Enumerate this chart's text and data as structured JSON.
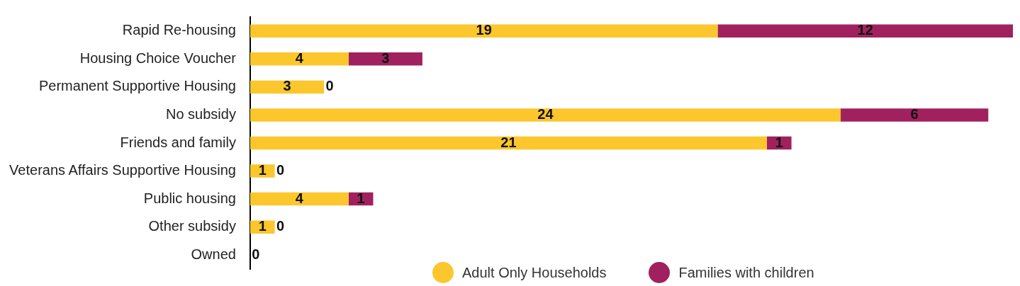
{
  "chart_data": {
    "type": "bar",
    "orientation": "horizontal",
    "stacked": true,
    "grid": false,
    "legend": "bottom",
    "xlim": [
      0,
      31
    ],
    "tick_labels": "y",
    "categories": [
      "Rapid Re-housing",
      "Housing Choice Voucher",
      "Permanent Supportive Housing",
      "No subsidy",
      "Friends and family",
      "Veterans Affairs Supportive Housing",
      "Public housing",
      "Other subsidy",
      "Owned"
    ],
    "series": [
      {
        "name": "Adult Only Households",
        "color": "#fcc62d",
        "values": [
          19,
          4,
          3,
          24,
          21,
          1,
          4,
          1,
          0
        ],
        "value_labels": [
          "19",
          "4",
          "3",
          "24",
          "21",
          "1",
          "4",
          "1",
          "0"
        ]
      },
      {
        "name": "Families with children",
        "color": "#a0215e",
        "values": [
          12,
          3,
          0,
          6,
          1,
          0,
          1,
          0,
          0
        ],
        "value_labels": [
          "12",
          "3",
          "0",
          "6",
          "1",
          "0",
          "1",
          "0",
          null
        ]
      }
    ]
  }
}
